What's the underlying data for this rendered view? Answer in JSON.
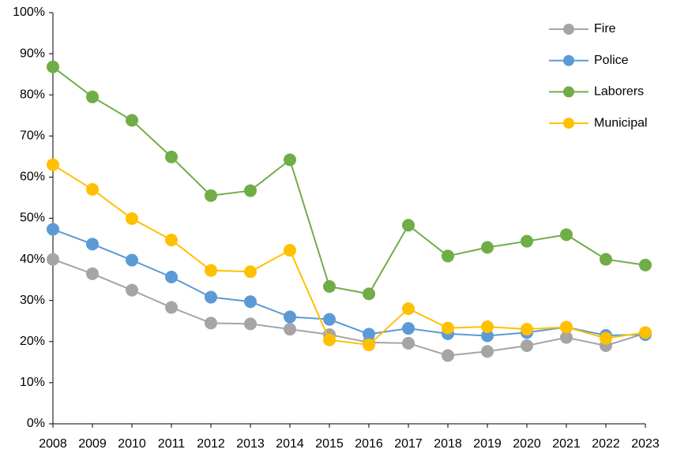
{
  "chart_data": {
    "type": "line",
    "categories": [
      "2008",
      "2009",
      "2010",
      "2011",
      "2012",
      "2013",
      "2014",
      "2015",
      "2016",
      "2017",
      "2018",
      "2019",
      "2020",
      "2021",
      "2022",
      "2023"
    ],
    "series": [
      {
        "name": "Fire",
        "color": "#a5a5a5",
        "values": [
          40,
          36.5,
          32.5,
          28.3,
          24.5,
          24.3,
          23,
          21.7,
          19.8,
          19.6,
          16.6,
          17.6,
          19,
          21,
          19,
          22
        ]
      },
      {
        "name": "Police",
        "color": "#5b9bd5",
        "values": [
          47.3,
          43.7,
          39.8,
          35.7,
          30.8,
          29.7,
          26,
          25.4,
          21.8,
          23.2,
          21.9,
          21.4,
          22.2,
          23.5,
          21.5,
          21.7
        ]
      },
      {
        "name": "Laborers",
        "color": "#70ad47",
        "values": [
          86.8,
          79.5,
          73.8,
          64.9,
          55.5,
          56.7,
          64.2,
          33.4,
          31.6,
          48.3,
          40.8,
          42.9,
          44.4,
          46,
          40,
          38.6
        ]
      },
      {
        "name": "Municipal",
        "color": "#ffc000",
        "values": [
          63,
          57,
          49.9,
          44.7,
          37.3,
          37,
          42.2,
          20.4,
          19.2,
          28,
          23.3,
          23.6,
          23,
          23.5,
          20.8,
          22.2
        ]
      }
    ],
    "ylim": [
      0,
      100
    ],
    "yticks": [
      {
        "value": 0,
        "label": "0%"
      },
      {
        "value": 10,
        "label": "10%"
      },
      {
        "value": 20,
        "label": "20%"
      },
      {
        "value": 30,
        "label": "30%"
      },
      {
        "value": 40,
        "label": "40%"
      },
      {
        "value": 50,
        "label": "50%"
      },
      {
        "value": 60,
        "label": "60%"
      },
      {
        "value": 70,
        "label": "70%"
      },
      {
        "value": 80,
        "label": "80%"
      },
      {
        "value": 90,
        "label": "90%"
      },
      {
        "value": 100,
        "label": "100%"
      }
    ],
    "grid": false,
    "legend": "top-right"
  }
}
